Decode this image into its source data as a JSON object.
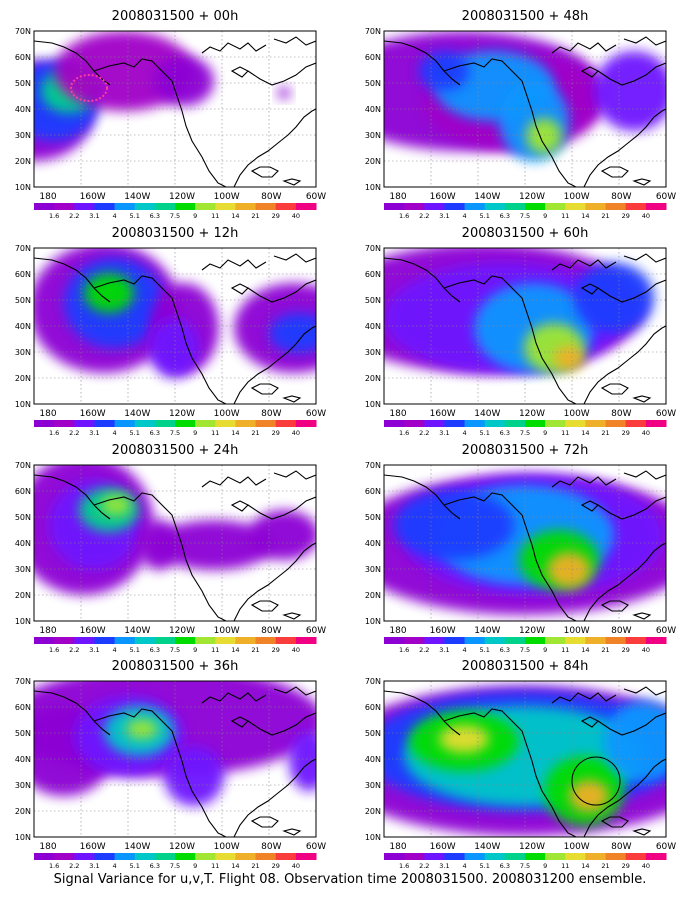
{
  "panels": [
    {
      "title": "2008031500 + 00h",
      "stage": 0
    },
    {
      "title": "2008031500 + 48h",
      "stage": 4
    },
    {
      "title": "2008031500 + 12h",
      "stage": 1
    },
    {
      "title": "2008031500 + 60h",
      "stage": 5
    },
    {
      "title": "2008031500 + 24h",
      "stage": 2
    },
    {
      "title": "2008031500 + 72h",
      "stage": 6
    },
    {
      "title": "2008031500 + 36h",
      "stage": 3
    },
    {
      "title": "2008031500 + 84h",
      "stage": 7
    }
  ],
  "axes": {
    "lat_labels": [
      "70N",
      "60N",
      "50N",
      "40N",
      "30N",
      "20N",
      "10N"
    ],
    "lon_labels": [
      "180",
      "160W",
      "140W",
      "120W",
      "100W",
      "80W",
      "60W"
    ]
  },
  "colorbar": {
    "labels": [
      "1.6",
      "2.2",
      "3.1",
      "4",
      "5.1",
      "6.3",
      "7.5",
      "9",
      "11",
      "14",
      "21",
      "29",
      "40"
    ],
    "colors": [
      "#8c00d4",
      "#a000c8",
      "#6e14ff",
      "#1e3cff",
      "#0a96ff",
      "#00c8c8",
      "#00d28c",
      "#00dc00",
      "#a0e632",
      "#e6dc32",
      "#f0af28",
      "#f08228",
      "#fa3c3c",
      "#f00082"
    ]
  },
  "caption": "Signal Variance for u,v,T. Flight 08. Observation time 2008031500. 2008031200 ensemble."
}
